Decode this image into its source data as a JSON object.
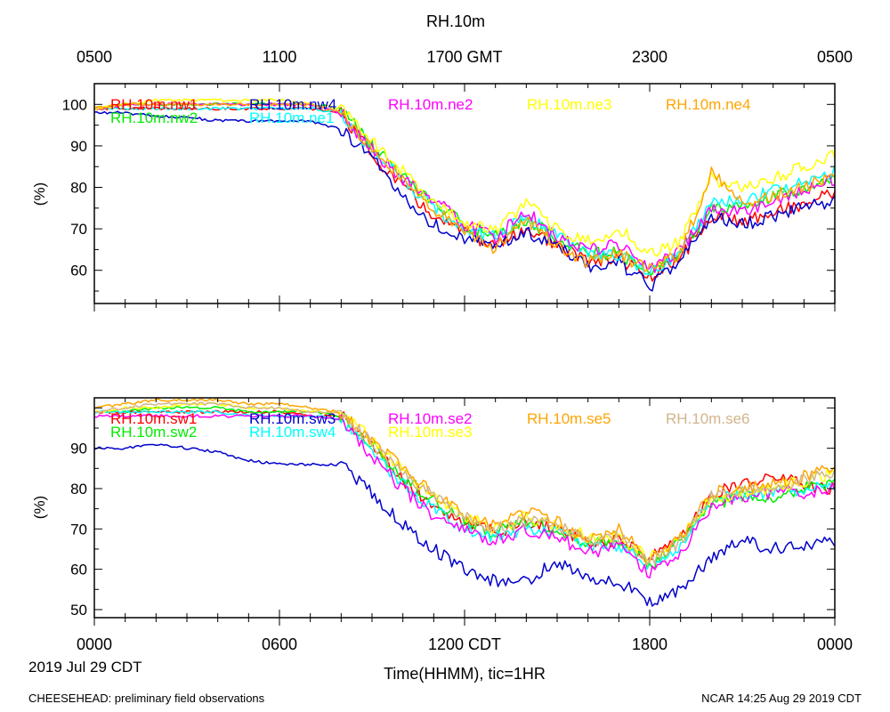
{
  "figure": {
    "title": "RH.10m",
    "date_label": "2019 Jul 29 CDT",
    "x_axis_label": "Time(HHMM), tic=1HR",
    "footer_left": "CHEESEHEAD: preliminary field observations",
    "footer_right": "NCAR 14:25 Aug 29 2019 CDT",
    "top_axis_ticks": [
      "0500",
      "1100",
      "1700 GMT",
      "2300",
      "0500"
    ],
    "bottom_axis_ticks": [
      "0000",
      "0600",
      "1200 CDT",
      "1800",
      "0000"
    ]
  },
  "chart_data": [
    {
      "type": "line",
      "panel": "upper",
      "title": "RH.10m",
      "ylabel": "(%)",
      "xlabel": "Time(HHMM), tic=1HR",
      "xlim": [
        0,
        24
      ],
      "ylim": [
        52,
        105
      ],
      "yticks": [
        60,
        70,
        80,
        90,
        100
      ],
      "x_hours": [
        0,
        1,
        2,
        3,
        4,
        5,
        6,
        7,
        8,
        9,
        10,
        11,
        12,
        13,
        14,
        15,
        16,
        17,
        18,
        19,
        20,
        21,
        22,
        23,
        24
      ],
      "series": [
        {
          "name": "RH.10m.nw1",
          "color": "#ff0000",
          "values": [
            99,
            99,
            99,
            99,
            99,
            99,
            99,
            99,
            98,
            88,
            80,
            73,
            69,
            66,
            70,
            66,
            62,
            63,
            58,
            63,
            73,
            72,
            74,
            76,
            79
          ]
        },
        {
          "name": "RH.10m.nw2",
          "color": "#00ee00",
          "values": [
            99,
            100,
            100,
            100,
            100,
            100,
            100,
            100,
            99,
            90,
            83,
            76,
            71,
            68,
            72,
            68,
            64,
            64,
            60,
            64,
            75,
            76,
            78,
            80,
            82
          ]
        },
        {
          "name": "RH.10m.nw4",
          "color": "#0000cc",
          "values": [
            98,
            98,
            97,
            97,
            96,
            96,
            96,
            96,
            94,
            87,
            78,
            71,
            68,
            66,
            69,
            66,
            61,
            62,
            56,
            62,
            73,
            71,
            73,
            75,
            77
          ]
        },
        {
          "name": "RH.10m.ne1",
          "color": "#00ffff",
          "values": [
            99,
            99,
            99,
            99,
            99,
            99,
            99,
            99,
            98,
            89,
            82,
            75,
            70,
            68,
            73,
            68,
            64,
            64,
            59,
            64,
            76,
            77,
            79,
            81,
            84
          ]
        },
        {
          "name": "RH.10m.ne2",
          "color": "#ff00ff",
          "values": [
            99,
            100,
            100,
            100,
            100,
            100,
            100,
            100,
            98,
            89,
            82,
            77,
            71,
            68,
            74,
            68,
            65,
            66,
            60,
            65,
            75,
            74,
            76,
            79,
            82
          ]
        },
        {
          "name": "RH.10m.ne3",
          "color": "#ffff00",
          "values": [
            99,
            100,
            101,
            101,
            101,
            101,
            101,
            100,
            99,
            91,
            84,
            76,
            72,
            70,
            76,
            70,
            67,
            70,
            64,
            67,
            82,
            80,
            82,
            85,
            88
          ]
        },
        {
          "name": "RH.10m.ne4",
          "color": "#ffa500",
          "values": [
            99,
            100,
            100,
            100,
            100,
            100,
            100,
            100,
            98,
            89,
            82,
            75,
            70,
            65,
            72,
            66,
            62,
            64,
            60,
            64,
            84,
            76,
            78,
            80,
            83
          ]
        }
      ]
    },
    {
      "type": "line",
      "panel": "lower",
      "ylabel": "(%)",
      "xlabel": "Time(HHMM), tic=1HR",
      "xlim": [
        0,
        24
      ],
      "ylim": [
        48,
        102.5
      ],
      "yticks": [
        50,
        60,
        70,
        80,
        90
      ],
      "x_hours": [
        0,
        1,
        2,
        3,
        4,
        5,
        6,
        7,
        8,
        9,
        10,
        11,
        12,
        13,
        14,
        15,
        16,
        17,
        18,
        19,
        20,
        21,
        22,
        23,
        24
      ],
      "series": [
        {
          "name": "RH.10m.sw1",
          "color": "#ff0000",
          "values": [
            99,
            99,
            99,
            99,
            99,
            99,
            99,
            98,
            98,
            91,
            82,
            76,
            72,
            69,
            72,
            70,
            67,
            67,
            63,
            68,
            79,
            81,
            83,
            81,
            80
          ]
        },
        {
          "name": "RH.10m.sw2",
          "color": "#00ee00",
          "values": [
            99,
            99,
            100,
            100,
            100,
            99,
            99,
            99,
            98,
            91,
            83,
            77,
            72,
            69,
            72,
            70,
            66,
            67,
            61,
            67,
            76,
            78,
            78,
            80,
            81
          ]
        },
        {
          "name": "RH.10m.sw3",
          "color": "#0000cc",
          "values": [
            90,
            90,
            91,
            90,
            89,
            87,
            86,
            86,
            86,
            79,
            71,
            65,
            60,
            57,
            57,
            62,
            57,
            57,
            52,
            55,
            63,
            67,
            65,
            66,
            67
          ]
        },
        {
          "name": "RH.10m.sw4",
          "color": "#00ffff",
          "values": [
            99,
            99,
            99,
            99,
            99,
            98,
            98,
            98,
            97,
            89,
            81,
            75,
            70,
            68,
            70,
            69,
            66,
            66,
            61,
            66,
            77,
            79,
            79,
            80,
            81
          ]
        },
        {
          "name": "RH.10m.se2",
          "color": "#ff00ff",
          "values": [
            98,
            98,
            98,
            98,
            98,
            98,
            98,
            98,
            97,
            88,
            80,
            73,
            70,
            67,
            70,
            68,
            64,
            66,
            59,
            64,
            76,
            78,
            79,
            79,
            80
          ]
        },
        {
          "name": "RH.10m.se3",
          "color": "#ffff00",
          "values": [
            99,
            100,
            100,
            101,
            101,
            100,
            100,
            99,
            99,
            92,
            84,
            78,
            73,
            70,
            73,
            71,
            68,
            68,
            63,
            68,
            78,
            79,
            80,
            82,
            84
          ]
        },
        {
          "name": "RH.10m.se5",
          "color": "#ffa500",
          "values": [
            100,
            101,
            102,
            102,
            102,
            101,
            101,
            100,
            99,
            92,
            85,
            79,
            73,
            71,
            74,
            72,
            67,
            70,
            62,
            68,
            79,
            80,
            81,
            83,
            85
          ]
        },
        {
          "name": "RH.10m.se6",
          "color": "#d2b48c",
          "values": [
            99,
            100,
            101,
            101,
            101,
            100,
            100,
            99,
            99,
            91,
            84,
            78,
            73,
            70,
            72,
            71,
            67,
            68,
            62,
            67,
            78,
            80,
            80,
            82,
            84
          ]
        }
      ]
    }
  ]
}
